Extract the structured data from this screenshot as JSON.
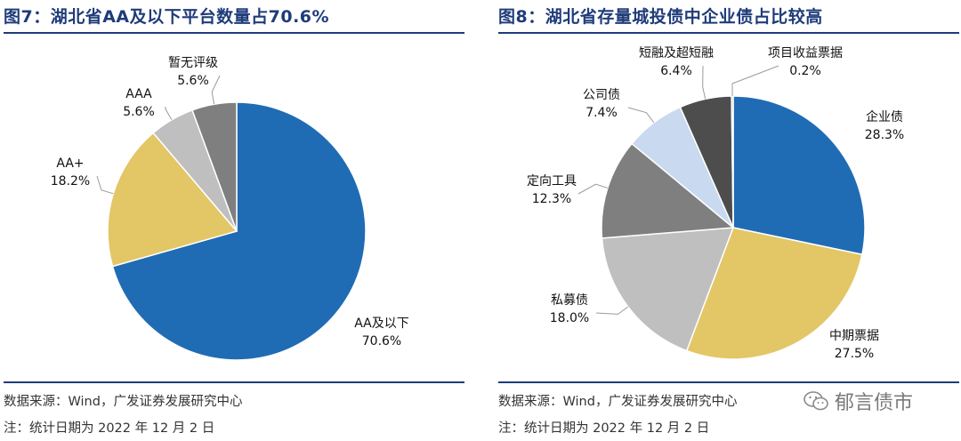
{
  "left": {
    "title": "图7：湖北省AA及以下平台数量占70.6%",
    "source": "数据来源：Wind，广发证券发展研究中心",
    "note": "注：统计日期为 2022 年 12 月 2 日"
  },
  "right": {
    "title": "图8：湖北省存量城投债中企业债占比较高",
    "source": "数据来源：Wind，广发证券发展研究中心",
    "note": "注：统计日期为 2022 年 12 月 2 日"
  },
  "watermark": {
    "text": "郁言债市",
    "icon": "wechat-icon"
  },
  "chart_data": [
    {
      "type": "pie",
      "title": "湖北省AA及以下平台数量占70.6%",
      "slices": [
        {
          "label": "AA及以下",
          "value": 70.6,
          "value_label": "70.6%",
          "color": "#1f6cb4"
        },
        {
          "label": "AA+",
          "value": 18.2,
          "value_label": "18.2%",
          "color": "#e3c666"
        },
        {
          "label": "AAA",
          "value": 5.6,
          "value_label": "5.6%",
          "color": "#bfbfbf"
        },
        {
          "label": "暂无评级",
          "value": 5.6,
          "value_label": "5.6%",
          "color": "#7f7f7f"
        }
      ]
    },
    {
      "type": "pie",
      "title": "湖北省存量城投债中企业债占比较高",
      "slices": [
        {
          "label": "企业债",
          "value": 28.3,
          "value_label": "28.3%",
          "color": "#1f6cb4"
        },
        {
          "label": "中期票据",
          "value": 27.5,
          "value_label": "27.5%",
          "color": "#e3c666"
        },
        {
          "label": "私募债",
          "value": 18.0,
          "value_label": "18.0%",
          "color": "#bfbfbf"
        },
        {
          "label": "定向工具",
          "value": 12.3,
          "value_label": "12.3%",
          "color": "#7f7f7f"
        },
        {
          "label": "公司债",
          "value": 7.4,
          "value_label": "7.4%",
          "color": "#c9d9ef"
        },
        {
          "label": "短融及超短融",
          "value": 6.4,
          "value_label": "6.4%",
          "color": "#4d4d4d"
        },
        {
          "label": "项目收益票据",
          "value": 0.2,
          "value_label": "0.2%",
          "color": "#9a9a9a"
        }
      ]
    }
  ]
}
